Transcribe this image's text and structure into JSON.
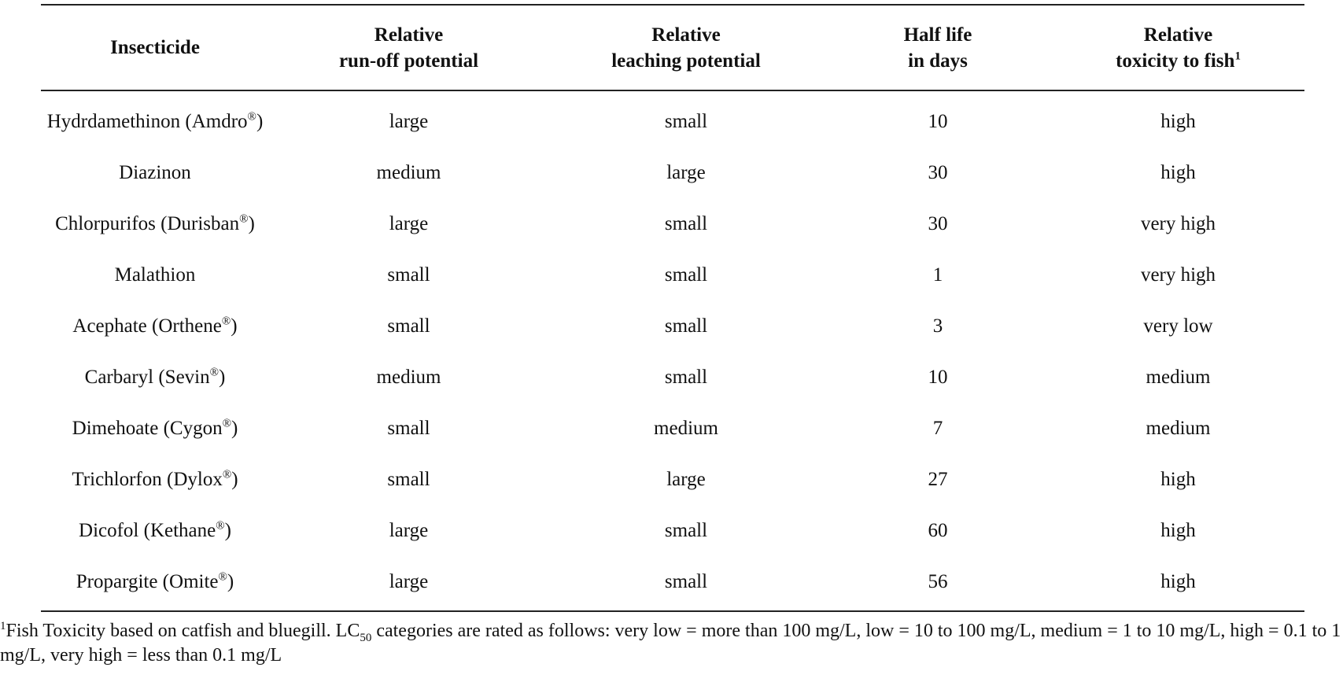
{
  "table": {
    "headers": [
      {
        "lines": [
          "Insecticide"
        ],
        "sup": ""
      },
      {
        "lines": [
          "Relative",
          "run-off potential"
        ],
        "sup": ""
      },
      {
        "lines": [
          "Relative",
          "leaching potential"
        ],
        "sup": ""
      },
      {
        "lines": [
          "Half life",
          "in days"
        ],
        "sup": ""
      },
      {
        "lines": [
          "Relative",
          "toxicity to fish"
        ],
        "sup": "1"
      }
    ],
    "rows": [
      {
        "name": "Hydrdamethinon (Amdro",
        "mark": "®",
        "close": ")",
        "runoff": "large",
        "leaching": "small",
        "half_life": "10",
        "toxicity": "high"
      },
      {
        "name": "Diazinon",
        "mark": "",
        "close": "",
        "runoff": "medium",
        "leaching": "large",
        "half_life": "30",
        "toxicity": "high"
      },
      {
        "name": "Chlorpurifos (Durisban",
        "mark": "®",
        "close": ")",
        "runoff": "large",
        "leaching": "small",
        "half_life": "30",
        "toxicity": "very high"
      },
      {
        "name": "Malathion",
        "mark": "",
        "close": "",
        "runoff": "small",
        "leaching": "small",
        "half_life": "1",
        "toxicity": "very high"
      },
      {
        "name": "Acephate (Orthene",
        "mark": "®",
        "close": ")",
        "runoff": "small",
        "leaching": "small",
        "half_life": "3",
        "toxicity": "very low"
      },
      {
        "name": "Carbaryl (Sevin",
        "mark": "®",
        "close": ")",
        "runoff": "medium",
        "leaching": "small",
        "half_life": "10",
        "toxicity": "medium"
      },
      {
        "name": "Dimehoate (Cygon",
        "mark": "®",
        "close": ")",
        "runoff": "small",
        "leaching": "medium",
        "half_life": "7",
        "toxicity": "medium"
      },
      {
        "name": "Trichlorfon (Dylox",
        "mark": "®",
        "close": ")",
        "runoff": "small",
        "leaching": "large",
        "half_life": "27",
        "toxicity": "high"
      },
      {
        "name": "Dicofol (Kethane",
        "mark": "®",
        "close": ")",
        "runoff": "large",
        "leaching": "small",
        "half_life": "60",
        "toxicity": "high"
      },
      {
        "name": "Propargite (Omite",
        "mark": "®",
        "close": ")",
        "runoff": "large",
        "leaching": "small",
        "half_life": "56",
        "toxicity": "high"
      }
    ]
  },
  "footnote": {
    "marker": "1",
    "text_before": "Fish Toxicity based on catfish and bluegill. LC",
    "subscript": "50",
    "text_after": " categories are rated as follows: very low = more than 100 mg/L, low = 10 to 100 mg/L, medium = 1 to 10 mg/L, high = 0.1 to 1 mg/L, very high = less than 0.1 mg/L"
  }
}
